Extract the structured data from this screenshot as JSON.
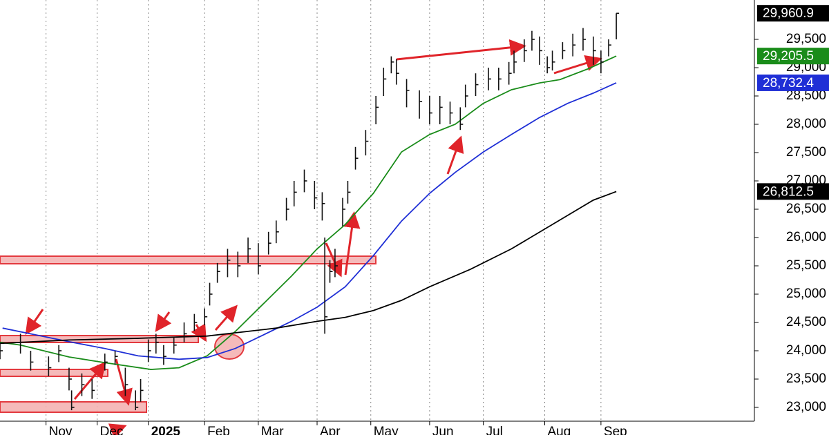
{
  "chart_data": {
    "type": "ohlc",
    "xlim": [
      0,
      295
    ],
    "ylim": [
      22756,
      30195
    ],
    "xticks": [
      {
        "value": 18,
        "label": "Nov"
      },
      {
        "value": 38,
        "label": "Dec"
      },
      {
        "value": 58,
        "label": "2025"
      },
      {
        "value": 80,
        "label": "Feb"
      },
      {
        "value": 101,
        "label": "Mar"
      },
      {
        "value": 124,
        "label": "Apr"
      },
      {
        "value": 145,
        "label": "May"
      },
      {
        "value": 168,
        "label": "Jun"
      },
      {
        "value": 189,
        "label": "Jul"
      },
      {
        "value": 213,
        "label": "Aug"
      },
      {
        "value": 235,
        "label": "Sep"
      }
    ],
    "yticks": [
      {
        "value": 23000,
        "label": "23,000"
      },
      {
        "value": 23500,
        "label": "23,500"
      },
      {
        "value": 24000,
        "label": "24,000"
      },
      {
        "value": 24500,
        "label": "24,500"
      },
      {
        "value": 25000,
        "label": "25,000"
      },
      {
        "value": 25500,
        "label": "25,500"
      },
      {
        "value": 26000,
        "label": "26,000"
      },
      {
        "value": 26500,
        "label": "26,500"
      },
      {
        "value": 27000,
        "label": "27,000"
      },
      {
        "value": 27500,
        "label": "27,500"
      },
      {
        "value": 28000,
        "label": "28,000"
      },
      {
        "value": 28500,
        "label": "28,500"
      },
      {
        "value": 29000,
        "label": "29,000"
      },
      {
        "value": 29500,
        "label": "29,500"
      }
    ],
    "grid": true,
    "bar_color": "#111111",
    "x": [
      0,
      8,
      12,
      19,
      23,
      27,
      28,
      32,
      36,
      41,
      45,
      49,
      53,
      55,
      58,
      61,
      64,
      68,
      72,
      76,
      80,
      82,
      85,
      89,
      93,
      97,
      101,
      105,
      108,
      112,
      115,
      119,
      123,
      126,
      127,
      129,
      131,
      134,
      136,
      139,
      143,
      147,
      150,
      153,
      155,
      159,
      164,
      168,
      172,
      176,
      180,
      182,
      186,
      191,
      195,
      199,
      201,
      205,
      208,
      211,
      214,
      216,
      220,
      224,
      228,
      232,
      235,
      238,
      241
    ],
    "high": [
      24150,
      24300,
      24000,
      23900,
      24100,
      23700,
      23300,
      23600,
      23500,
      23950,
      24000,
      23700,
      23300,
      23500,
      24200,
      24300,
      24100,
      24250,
      24500,
      24650,
      24750,
      25200,
      25550,
      25800,
      25750,
      26000,
      25900,
      26100,
      26300,
      26700,
      27000,
      27200,
      27000,
      26800,
      26000,
      25600,
      25800,
      26700,
      27000,
      27600,
      27900,
      28500,
      29000,
      29200,
      29150,
      28800,
      28600,
      28500,
      28500,
      28400,
      28300,
      28700,
      28900,
      29000,
      29000,
      29100,
      29300,
      29500,
      29650,
      29550,
      29200,
      29300,
      29450,
      29600,
      29700,
      29550,
      29300,
      29500,
      29960
    ],
    "low": [
      23850,
      23950,
      23650,
      23550,
      23800,
      23300,
      22950,
      23200,
      23150,
      23650,
      23750,
      23200,
      22950,
      23100,
      23800,
      23950,
      23750,
      23950,
      24150,
      24350,
      24450,
      24800,
      25200,
      25300,
      25300,
      25550,
      25350,
      25700,
      25900,
      26300,
      26550,
      26800,
      26500,
      26300,
      24300,
      25200,
      25300,
      26200,
      26600,
      27200,
      27450,
      28000,
      28500,
      28900,
      28700,
      28300,
      28100,
      28000,
      28000,
      28000,
      27900,
      28300,
      28500,
      28600,
      28600,
      28700,
      28900,
      29100,
      29300,
      29050,
      28900,
      28950,
      29150,
      29200,
      29300,
      29050,
      28900,
      29200,
      29500
    ],
    "close": [
      24000,
      24150,
      23800,
      23700,
      24000,
      23500,
      23000,
      23400,
      23300,
      23800,
      23900,
      23400,
      23000,
      23300,
      24000,
      24150,
      23900,
      24100,
      24300,
      24500,
      24600,
      25000,
      25400,
      25600,
      25500,
      25800,
      25500,
      25900,
      26100,
      26500,
      26800,
      27000,
      26700,
      26600,
      24600,
      25400,
      25500,
      26500,
      26800,
      27400,
      27700,
      28300,
      28800,
      29100,
      28900,
      28600,
      28400,
      28200,
      28300,
      28200,
      28000,
      28500,
      28700,
      28800,
      28800,
      28900,
      29100,
      29300,
      29500,
      29300,
      29000,
      29100,
      29300,
      29400,
      29500,
      29300,
      29100,
      29400,
      29960
    ],
    "lines": [
      {
        "color": "#1a8c1a",
        "x": [
          0,
          8,
          27,
          41,
          59,
          70,
          81,
          92,
          103,
          114,
          124,
          135,
          146,
          157,
          168,
          178,
          189,
          200,
          211,
          219,
          230,
          241
        ],
        "values": [
          24150,
          24100,
          23890,
          23790,
          23670,
          23700,
          23910,
          24340,
          24830,
          25320,
          25800,
          26230,
          26780,
          27510,
          27820,
          28000,
          28370,
          28610,
          28730,
          28790,
          28980,
          29205.5
        ]
      },
      {
        "color": "#1f2fd6",
        "x": [
          1,
          14,
          27,
          41,
          54,
          70,
          81,
          92,
          103,
          114,
          124,
          135,
          146,
          157,
          168,
          178,
          189,
          200,
          211,
          222,
          232,
          241
        ],
        "values": [
          24400,
          24280,
          24160,
          24040,
          23910,
          23850,
          23880,
          24040,
          24280,
          24520,
          24770,
          25130,
          25680,
          26290,
          26780,
          27150,
          27510,
          27820,
          28120,
          28370,
          28550,
          28732.4
        ]
      },
      {
        "color": "#000000",
        "x": [
          0,
          27,
          54,
          81,
          108,
          124,
          135,
          146,
          157,
          168,
          184,
          200,
          216,
          232,
          241
        ],
        "values": [
          24130,
          24190,
          24220,
          24260,
          24400,
          24520,
          24590,
          24710,
          24890,
          25130,
          25440,
          25800,
          26230,
          26660,
          26812.5
        ]
      }
    ],
    "last_labels": [
      {
        "value": 29960.9,
        "label": "29,960.9",
        "color": "#000000"
      },
      {
        "value": 29205.5,
        "label": "29,205.5",
        "color": "#1a8c1a"
      },
      {
        "value": 28732.4,
        "label": "28,732.4",
        "color": "#1f2fd6"
      },
      {
        "value": 26812.5,
        "label": "26,812.5",
        "color": "#000000"
      }
    ]
  }
}
